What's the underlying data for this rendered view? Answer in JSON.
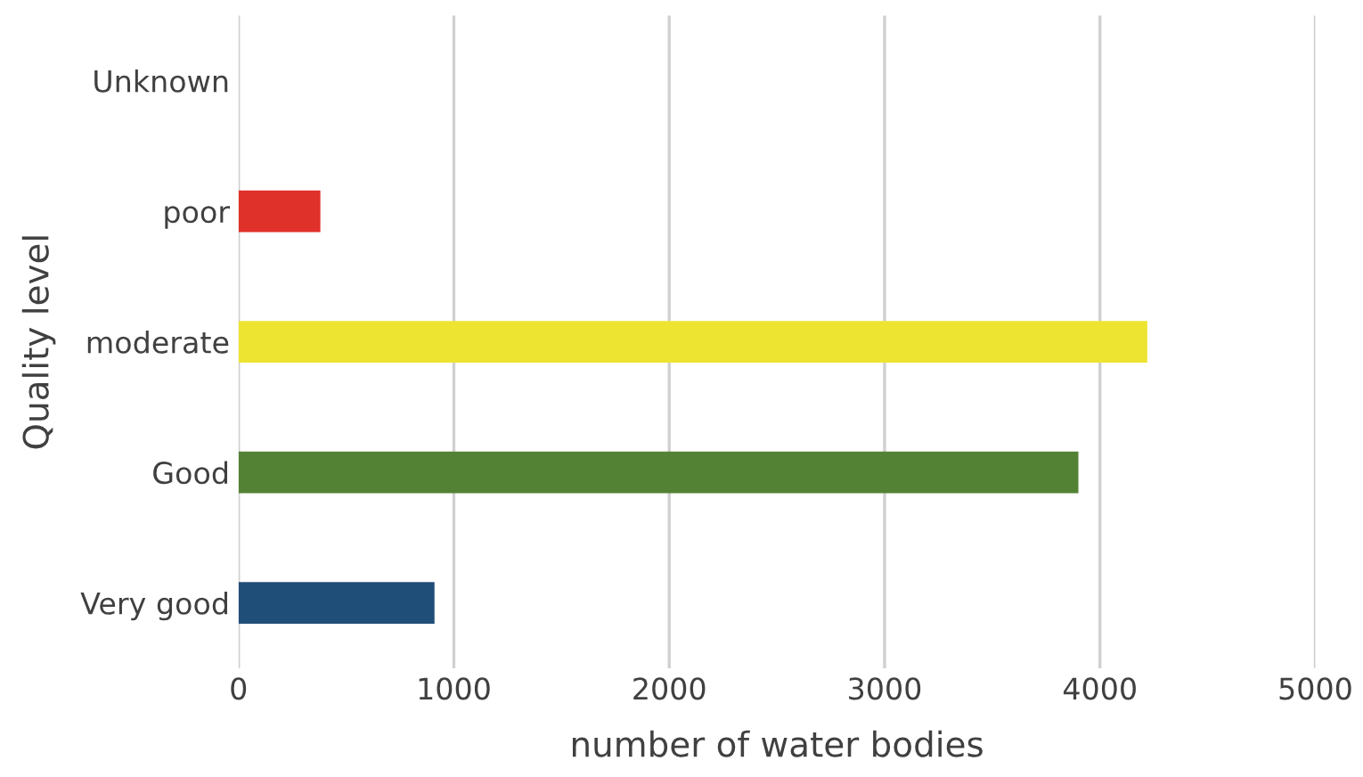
{
  "chart_data": {
    "type": "bar",
    "orientation": "horizontal",
    "xlabel": "number of water bodies",
    "ylabel": "Quality level",
    "categories": [
      "Unknown",
      "poor",
      "moderate",
      "Good",
      "Very good"
    ],
    "values": [
      0,
      380,
      4220,
      3900,
      910
    ],
    "colors": [
      "#a0a0a0",
      "#e0302a",
      "#ede431",
      "#548235",
      "#1f4e79"
    ],
    "xlim": [
      0,
      5000
    ],
    "xticks": [
      0,
      1000,
      2000,
      3000,
      4000,
      5000
    ],
    "grid": "x"
  }
}
